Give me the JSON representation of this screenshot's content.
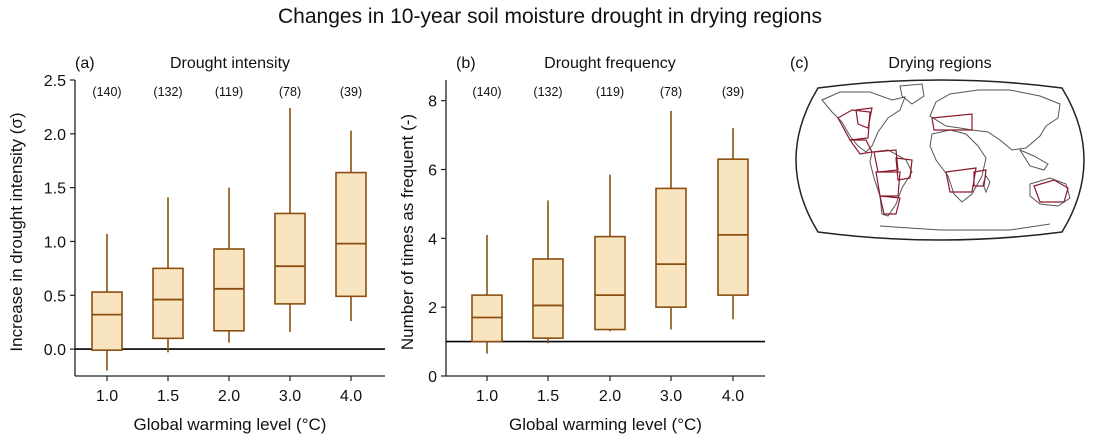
{
  "title": "Changes in 10-year soil moisture drought in drying regions",
  "colors": {
    "box_fill": "#f9e4c0",
    "box_stroke": "#8a4f10",
    "zero_line": "#000000",
    "map_ocean": "#ffffff",
    "map_land_stroke": "#555555",
    "region_stroke": "#8b1a2e"
  },
  "chart_data": [
    {
      "type": "box",
      "panel_label": "(a)",
      "title": "Drought intensity",
      "xlabel": "Global warming level (°C)",
      "ylabel": "Increase in drought intensity (σ)",
      "categories": [
        "1.0",
        "1.5",
        "2.0",
        "3.0",
        "4.0"
      ],
      "counts": [
        "(140)",
        "(132)",
        "(119)",
        "(78)",
        "(39)"
      ],
      "ylim": [
        -0.25,
        2.5
      ],
      "yticks": [
        "0.0",
        "0.5",
        "1.0",
        "1.5",
        "2.0",
        "2.5"
      ],
      "reference_line": 0.0,
      "boxes": [
        {
          "whisker_low": -0.2,
          "q1": -0.01,
          "median": 0.32,
          "q3": 0.53,
          "whisker_high": 1.07
        },
        {
          "whisker_low": -0.03,
          "q1": 0.1,
          "median": 0.46,
          "q3": 0.75,
          "whisker_high": 1.41
        },
        {
          "whisker_low": 0.06,
          "q1": 0.17,
          "median": 0.56,
          "q3": 0.93,
          "whisker_high": 1.5
        },
        {
          "whisker_low": 0.16,
          "q1": 0.42,
          "median": 0.77,
          "q3": 1.26,
          "whisker_high": 2.24
        },
        {
          "whisker_low": 0.26,
          "q1": 0.49,
          "median": 0.98,
          "q3": 1.64,
          "whisker_high": 2.03
        }
      ]
    },
    {
      "type": "box",
      "panel_label": "(b)",
      "title": "Drought frequency",
      "xlabel": "Global warming level (°C)",
      "ylabel": "Number of times as frequent (-)",
      "categories": [
        "1.0",
        "1.5",
        "2.0",
        "3.0",
        "4.0"
      ],
      "counts": [
        "(140)",
        "(132)",
        "(119)",
        "(78)",
        "(39)"
      ],
      "ylim": [
        0,
        8.6
      ],
      "yticks": [
        "0",
        "2",
        "4",
        "6",
        "8"
      ],
      "reference_line": 1.0,
      "boxes": [
        {
          "whisker_low": 0.65,
          "q1": 1.0,
          "median": 1.7,
          "q3": 2.35,
          "whisker_high": 4.1
        },
        {
          "whisker_low": 0.95,
          "q1": 1.1,
          "median": 2.05,
          "q3": 3.4,
          "whisker_high": 5.1
        },
        {
          "whisker_low": 1.3,
          "q1": 1.35,
          "median": 2.35,
          "q3": 4.05,
          "whisker_high": 5.85
        },
        {
          "whisker_low": 1.35,
          "q1": 2.0,
          "median": 3.25,
          "q3": 5.45,
          "whisker_high": 7.7
        },
        {
          "whisker_low": 1.65,
          "q1": 2.35,
          "median": 4.1,
          "q3": 6.3,
          "whisker_high": 7.2
        }
      ]
    }
  ],
  "map_panel": {
    "panel_label": "(c)",
    "title": "Drying regions"
  }
}
